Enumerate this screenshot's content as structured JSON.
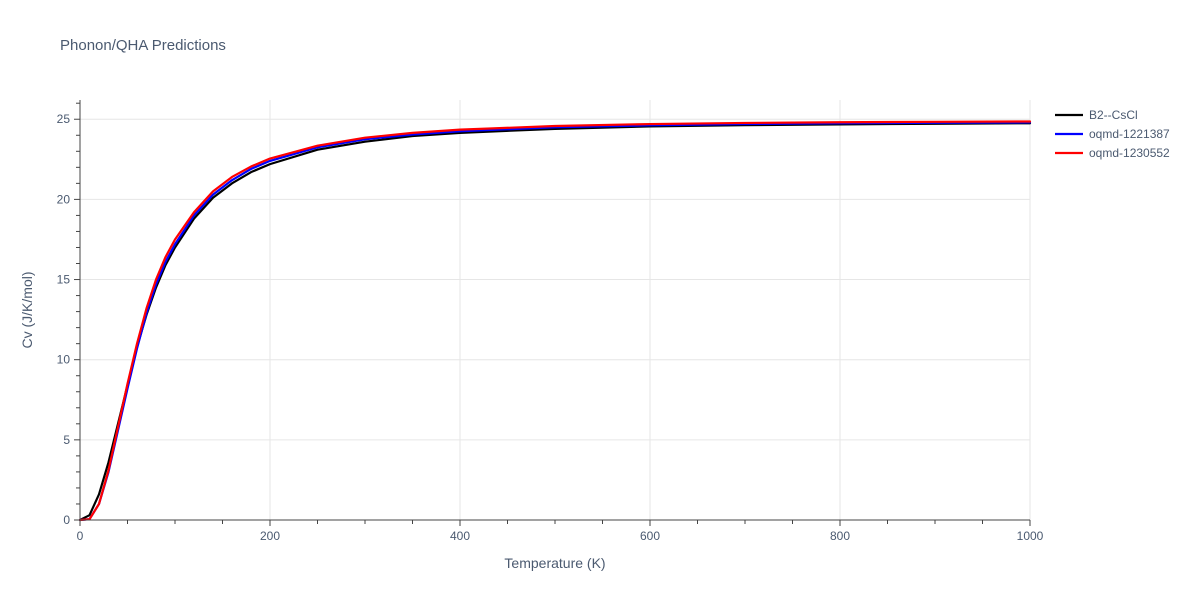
{
  "chart_data": {
    "type": "line",
    "title": "Phonon/QHA Predictions",
    "xlabel": "Temperature (K)",
    "ylabel": "Cv (J/K/mol)",
    "xlim": [
      0,
      1000
    ],
    "ylim": [
      0,
      26.2
    ],
    "xticks": [
      0,
      200,
      400,
      600,
      800,
      1000
    ],
    "yticks": [
      0,
      5,
      10,
      15,
      20,
      25
    ],
    "xtick_labels": [
      "0",
      "200",
      "400",
      "600",
      "800",
      "1000"
    ],
    "ytick_labels": [
      "0",
      "5",
      "10",
      "15",
      "20",
      "25"
    ],
    "grid": true,
    "legend_position": "right",
    "series": [
      {
        "name": "B2--CsCl",
        "color": "#000000",
        "x": [
          0,
          10,
          20,
          30,
          40,
          50,
          60,
          70,
          80,
          90,
          100,
          120,
          140,
          160,
          180,
          200,
          250,
          300,
          350,
          400,
          500,
          600,
          700,
          800,
          900,
          1000
        ],
        "y": [
          0,
          0.3,
          1.6,
          3.6,
          6.0,
          8.4,
          10.8,
          12.8,
          14.5,
          15.9,
          17.0,
          18.8,
          20.1,
          21.0,
          21.7,
          22.2,
          23.1,
          23.6,
          23.95,
          24.15,
          24.4,
          24.55,
          24.63,
          24.68,
          24.72,
          24.75
        ]
      },
      {
        "name": "oqmd-1221387",
        "color": "#0000ff",
        "x": [
          0,
          10,
          20,
          30,
          40,
          50,
          60,
          70,
          80,
          90,
          100,
          120,
          140,
          160,
          180,
          200,
          250,
          300,
          350,
          400,
          500,
          600,
          700,
          800,
          900,
          1000
        ],
        "y": [
          0,
          0.05,
          1.0,
          3.0,
          5.6,
          8.2,
          10.7,
          12.9,
          14.7,
          16.1,
          17.2,
          19.0,
          20.3,
          21.2,
          21.9,
          22.4,
          23.25,
          23.75,
          24.05,
          24.25,
          24.5,
          24.62,
          24.7,
          24.75,
          24.78,
          24.8
        ]
      },
      {
        "name": "oqmd-1230552",
        "color": "#ff0000",
        "x": [
          0,
          10,
          20,
          30,
          40,
          50,
          60,
          70,
          80,
          90,
          100,
          120,
          140,
          160,
          180,
          200,
          250,
          300,
          350,
          400,
          500,
          600,
          700,
          800,
          900,
          1000
        ],
        "y": [
          0,
          0.05,
          1.0,
          3.1,
          5.8,
          8.5,
          11.0,
          13.2,
          15.0,
          16.4,
          17.5,
          19.2,
          20.5,
          21.4,
          22.05,
          22.55,
          23.35,
          23.85,
          24.15,
          24.35,
          24.58,
          24.7,
          24.77,
          24.81,
          24.84,
          24.86
        ]
      }
    ]
  }
}
